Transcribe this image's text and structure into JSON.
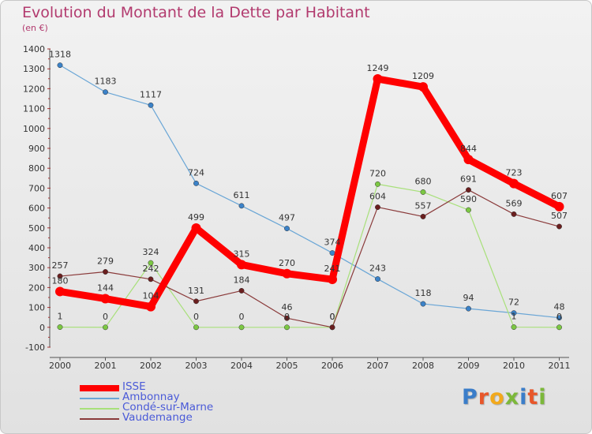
{
  "header": {
    "title": "Evolution du Montant de la Dette par Habitant",
    "subtitle": "(en €)"
  },
  "logo": {
    "text": "Proxiti",
    "colors": [
      "#3a7dc9",
      "#e8562a",
      "#f2a91c",
      "#7cb83a",
      "#3a7dc9",
      "#e8562a",
      "#7cb83a"
    ]
  },
  "chart_data": {
    "type": "line",
    "title": "Evolution du Montant de la Dette par Habitant",
    "subtitle": "(en €)",
    "categories": [
      "2000",
      "2001",
      "2002",
      "2003",
      "2004",
      "2005",
      "2006",
      "2007",
      "2008",
      "2009",
      "2010",
      "2011"
    ],
    "ylim": [
      -100,
      1400
    ],
    "y_ticks": [
      -100,
      0,
      100,
      200,
      300,
      400,
      500,
      600,
      700,
      800,
      900,
      1000,
      1100,
      1200,
      1300,
      1400
    ],
    "grid": false,
    "legend_position": "bottom-left",
    "series": [
      {
        "name": "ISSE",
        "color": "#ff0000",
        "marker_color": "#ff0000",
        "width": 9,
        "values": [
          180,
          144,
          104,
          499,
          315,
          270,
          241,
          1249,
          1209,
          844,
          723,
          607
        ]
      },
      {
        "name": "Ambonnay",
        "color": "#6aa6d6",
        "marker_color": "#3b82c8",
        "width": 1.2,
        "values": [
          1318,
          1183,
          1117,
          724,
          611,
          497,
          374,
          243,
          118,
          94,
          72,
          48
        ]
      },
      {
        "name": "Condé-sur-Marne",
        "color": "#a8e07a",
        "marker_color": "#7cc843",
        "width": 1.2,
        "values": [
          1,
          0,
          324,
          0,
          0,
          0,
          0,
          720,
          680,
          590,
          1,
          0
        ]
      },
      {
        "name": "Vaudemange",
        "color": "#8a3a3a",
        "marker_color": "#6b1f1f",
        "width": 1.2,
        "values": [
          257,
          279,
          242,
          131,
          184,
          46,
          0,
          604,
          557,
          691,
          569,
          507
        ]
      }
    ],
    "data_labels": [
      [
        "180",
        "144",
        "104",
        "499",
        "315",
        "270",
        "241",
        "1249",
        "1209",
        "844",
        "723",
        "607"
      ],
      [
        "1318",
        "1183",
        "1117",
        "724",
        "611",
        "497",
        "374",
        "243",
        "118",
        "94",
        "72",
        "48"
      ],
      [
        "1",
        "0",
        "324",
        "0",
        "0",
        "0",
        "0",
        "720",
        "680",
        "590",
        "1",
        "0"
      ],
      [
        "257",
        "279",
        "242",
        "131",
        "184",
        "46",
        "0",
        "604",
        "557",
        "691",
        "569",
        "507"
      ]
    ]
  }
}
